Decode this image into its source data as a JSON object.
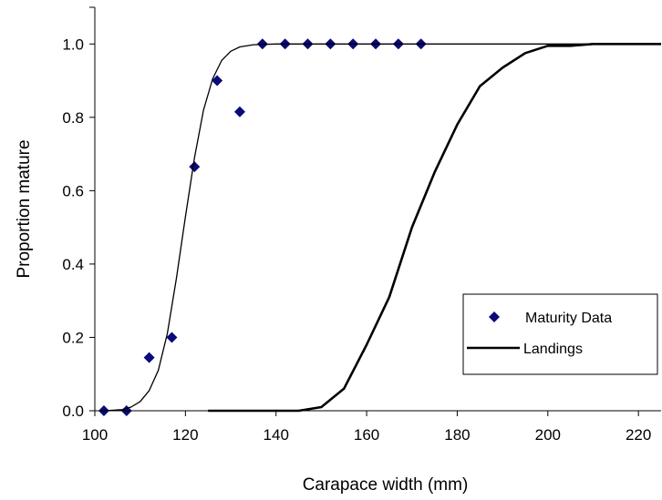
{
  "chart_data": {
    "type": "scatter",
    "xlabel": "Carapace width (mm)",
    "ylabel": "Proportion mature",
    "xlim": [
      100,
      225
    ],
    "ylim": [
      0,
      1.1
    ],
    "x_ticks": [
      "100",
      "120",
      "140",
      "160",
      "180",
      "200",
      "220"
    ],
    "y_ticks": [
      "0.0",
      "0.2",
      "0.4",
      "0.6",
      "0.8",
      "1.0"
    ],
    "grid": false,
    "legend_position": "bottom-right",
    "series": [
      {
        "name": "Maturity Data",
        "kind": "scatter",
        "marker": "diamond",
        "color": "#0a0a7a",
        "points": [
          [
            102,
            0.0
          ],
          [
            107,
            0.0
          ],
          [
            112,
            0.145
          ],
          [
            117,
            0.2
          ],
          [
            122,
            0.665
          ],
          [
            127,
            0.9
          ],
          [
            132,
            0.815
          ],
          [
            137,
            1.0
          ],
          [
            142,
            1.0
          ],
          [
            147,
            1.0
          ],
          [
            152,
            1.0
          ],
          [
            157,
            1.0
          ],
          [
            162,
            1.0
          ],
          [
            167,
            1.0
          ],
          [
            172,
            1.0
          ]
        ]
      },
      {
        "name": "",
        "kind": "line",
        "color": "#000000",
        "points": [
          [
            102,
            0.0
          ],
          [
            106,
            0.003
          ],
          [
            108,
            0.01
          ],
          [
            110,
            0.025
          ],
          [
            112,
            0.055
          ],
          [
            114,
            0.11
          ],
          [
            116,
            0.21
          ],
          [
            118,
            0.36
          ],
          [
            120,
            0.53
          ],
          [
            122,
            0.69
          ],
          [
            124,
            0.82
          ],
          [
            126,
            0.905
          ],
          [
            128,
            0.955
          ],
          [
            130,
            0.98
          ],
          [
            132,
            0.992
          ],
          [
            135,
            0.998
          ],
          [
            140,
            1.0
          ],
          [
            225,
            1.0
          ]
        ]
      },
      {
        "name": "Landings",
        "kind": "line",
        "color": "#000000",
        "points": [
          [
            125,
            0.0
          ],
          [
            145,
            0.0
          ],
          [
            150,
            0.01
          ],
          [
            155,
            0.06
          ],
          [
            160,
            0.18
          ],
          [
            165,
            0.31
          ],
          [
            170,
            0.5
          ],
          [
            175,
            0.65
          ],
          [
            180,
            0.78
          ],
          [
            185,
            0.885
          ],
          [
            190,
            0.935
          ],
          [
            195,
            0.975
          ],
          [
            200,
            0.995
          ],
          [
            205,
            0.995
          ],
          [
            210,
            1.0
          ],
          [
            225,
            1.0
          ]
        ]
      }
    ]
  }
}
